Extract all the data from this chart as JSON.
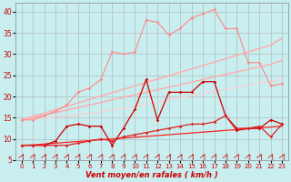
{
  "xlabel": "Vent moyen/en rafales ( km/h )",
  "background_color": "#c8eef0",
  "grid_color": "#b0b0b0",
  "xlim": [
    -0.5,
    23.5
  ],
  "ylim": [
    5,
    42
  ],
  "yticks": [
    5,
    10,
    15,
    20,
    25,
    30,
    35,
    40
  ],
  "xticks": [
    0,
    1,
    2,
    3,
    4,
    5,
    6,
    7,
    8,
    9,
    10,
    11,
    12,
    13,
    14,
    15,
    16,
    17,
    18,
    19,
    20,
    21,
    22,
    23
  ],
  "x": [
    0,
    1,
    2,
    3,
    4,
    5,
    6,
    7,
    8,
    9,
    10,
    11,
    12,
    13,
    14,
    15,
    16,
    17,
    18,
    19,
    20,
    21,
    22,
    23
  ],
  "y_pink_jagged": [
    14.5,
    14.5,
    15.5,
    16.5,
    18.0,
    21.0,
    22.0,
    24.0,
    30.5,
    30.0,
    30.5,
    38.0,
    37.5,
    34.5,
    36.0,
    38.5,
    39.5,
    40.5,
    36.0,
    36.0,
    28.0,
    28.0,
    22.5,
    23.0
  ],
  "y_straight_top": [
    14.5,
    15.3,
    16.1,
    16.9,
    17.7,
    18.5,
    19.3,
    20.1,
    20.9,
    21.7,
    22.5,
    23.3,
    24.1,
    24.9,
    25.7,
    26.5,
    27.3,
    28.1,
    28.9,
    29.7,
    30.5,
    31.3,
    32.1,
    33.8
  ],
  "y_straight_mid": [
    14.5,
    15.0,
    15.6,
    16.2,
    16.8,
    17.4,
    18.0,
    18.6,
    19.2,
    19.8,
    20.4,
    21.0,
    21.6,
    22.2,
    22.8,
    23.4,
    24.0,
    24.6,
    25.2,
    25.8,
    26.4,
    27.0,
    27.6,
    28.5
  ],
  "y_straight_low": [
    14.5,
    14.7,
    14.9,
    15.1,
    15.4,
    15.7,
    16.0,
    16.4,
    16.8,
    17.2,
    17.7,
    18.2,
    18.7,
    19.2,
    19.7,
    20.2,
    20.7,
    21.2,
    21.7,
    22.2,
    22.7,
    23.2,
    23.5,
    24.0
  ],
  "y_red_jagged": [
    8.5,
    8.5,
    8.5,
    9.5,
    13.0,
    13.5,
    13.0,
    13.0,
    8.5,
    12.5,
    17.0,
    24.0,
    14.5,
    21.0,
    21.0,
    21.0,
    23.5,
    23.5,
    15.5,
    12.0,
    12.5,
    12.5,
    14.5,
    13.5
  ],
  "y_red_mid": [
    8.5,
    8.5,
    8.5,
    8.5,
    8.5,
    9.0,
    9.5,
    10.0,
    9.5,
    10.5,
    11.0,
    11.5,
    12.0,
    12.5,
    13.0,
    13.5,
    13.5,
    14.0,
    15.5,
    12.5,
    12.5,
    13.0,
    10.5,
    13.5
  ],
  "y_red_straight": [
    8.5,
    8.6,
    8.8,
    9.0,
    9.2,
    9.4,
    9.6,
    9.8,
    10.0,
    10.2,
    10.4,
    10.6,
    10.8,
    11.0,
    11.2,
    11.4,
    11.6,
    11.8,
    12.0,
    12.2,
    12.4,
    12.6,
    12.8,
    13.0
  ]
}
